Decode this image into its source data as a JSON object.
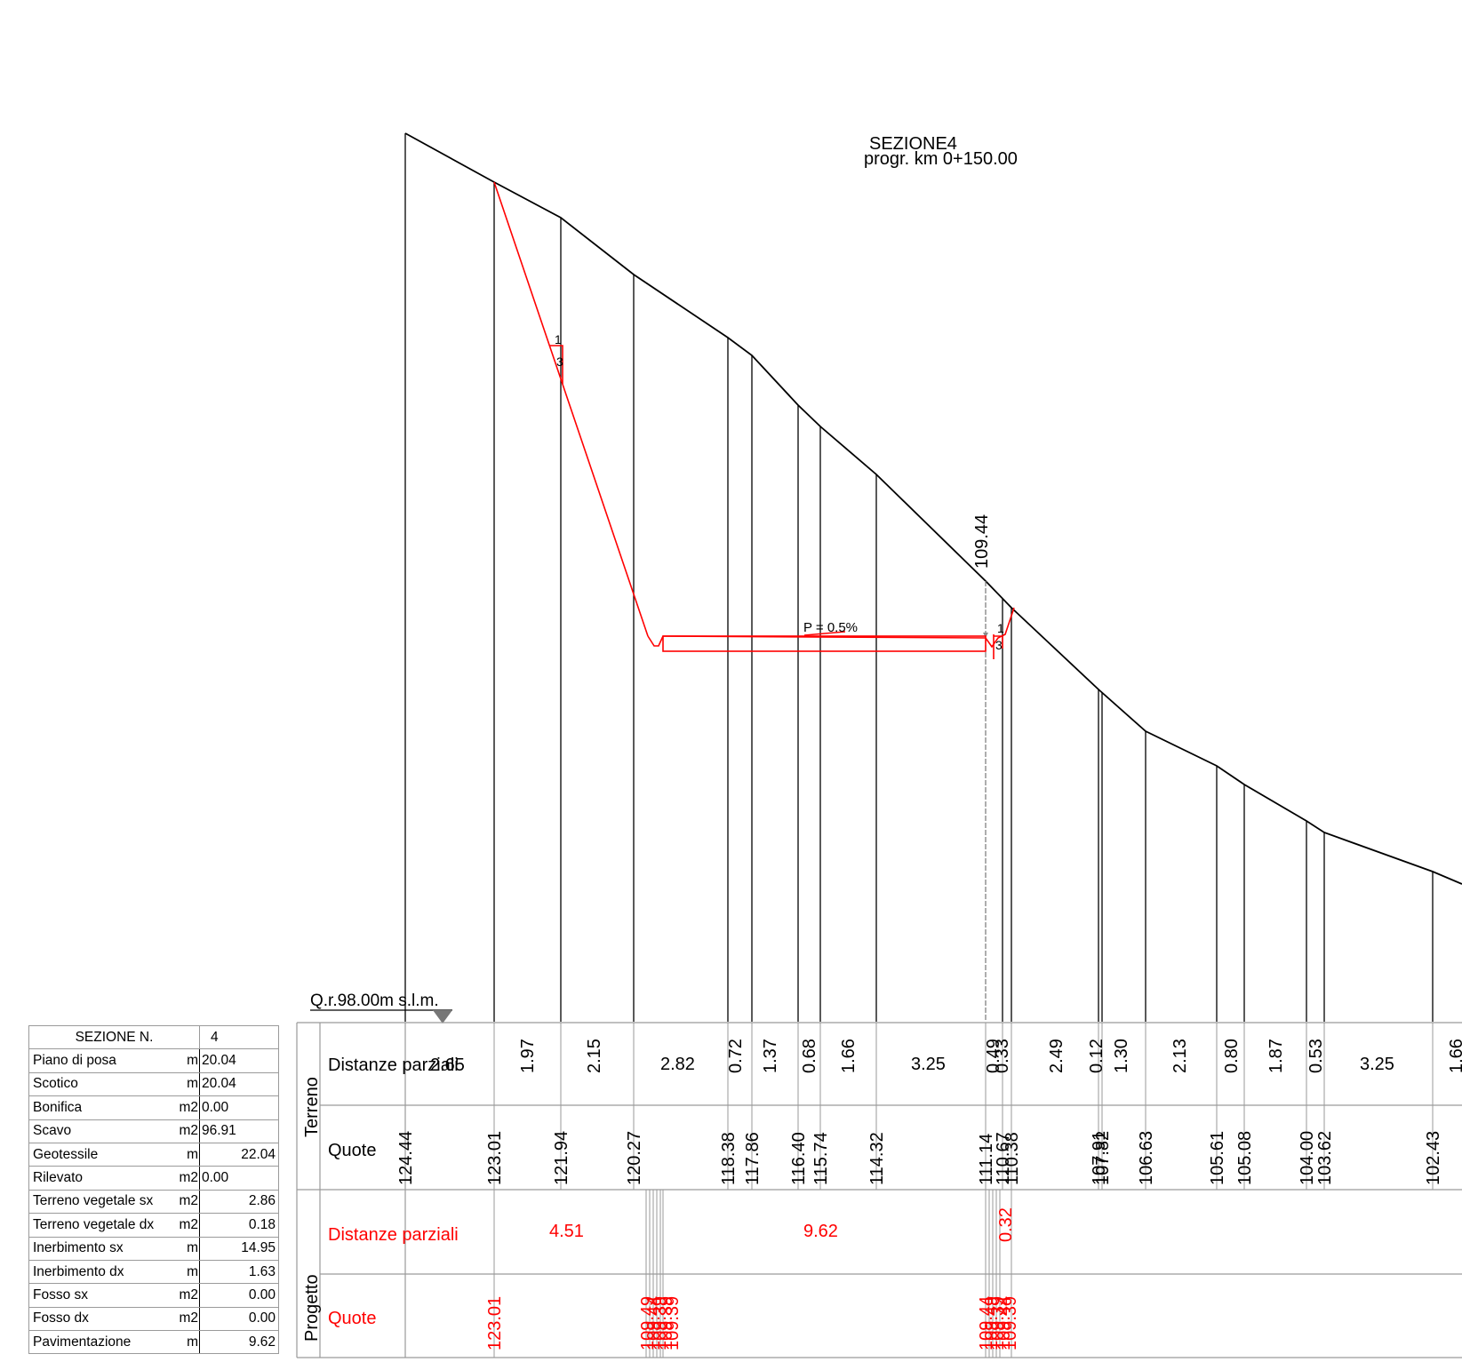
{
  "title": {
    "section": "SEZIONE4",
    "progressive": "progr. km 0+150.00"
  },
  "reference_level": "Q.r.98.00m s.l.m.",
  "drawing": {
    "slope_label": "P = 0.5%",
    "slope_ratio_left": [
      "1",
      "3"
    ],
    "slope_ratio_right": [
      "1",
      "3"
    ],
    "center_elevation": "109.44"
  },
  "band": {
    "group_terreno": "Terreno",
    "group_progetto": "Progetto",
    "row_distanze": "Distanze parziali",
    "row_quote": "Quote",
    "row_prog_distanze": "Distanze parziali",
    "row_prog_quote": "Quote"
  },
  "terreno_distanze": [
    "2.65",
    "1.97",
    "2.15",
    "2.82",
    "0.72",
    "1.37",
    "0.68",
    "1.66",
    "3.25",
    "0.49",
    "0.33",
    "2.49",
    "0.12",
    "1.30",
    "2.13",
    "0.80",
    "1.87",
    "0.53",
    "3.25",
    "1.66"
  ],
  "terreno_quote": [
    "124.44",
    "123.01",
    "121.94",
    "120.27",
    "118.38",
    "117.86",
    "116.40",
    "115.74",
    "114.32",
    "111.14",
    "110.67",
    "110.38",
    "107.91",
    "107.82",
    "106.63",
    "105.61",
    "105.08",
    "104.00",
    "103.62",
    "102.43"
  ],
  "progetto_distanze": [
    "4.51",
    "9.62",
    "0.32"
  ],
  "progetto_quote": [
    "123.01",
    "109.49",
    "109.44",
    "109.39"
  ],
  "summary": {
    "header_label": "SEZIONE N.",
    "header_value": "4",
    "rows": [
      {
        "label": "Piano di posa",
        "unit": "m",
        "value": "20.04"
      },
      {
        "label": "Scotico",
        "unit": "m",
        "value": "20.04"
      },
      {
        "label": "Bonifica",
        "unit": "m2",
        "value": "0.00"
      },
      {
        "label": "Scavo",
        "unit": "m2",
        "value": "96.91"
      },
      {
        "label": "Geotessile",
        "unit": "m",
        "value": "22.04"
      },
      {
        "label": "Rilevato",
        "unit": "m2",
        "value": "0.00"
      },
      {
        "label": "Terreno vegetale sx",
        "unit": "m2",
        "value": "2.86"
      },
      {
        "label": "Terreno vegetale dx",
        "unit": "m2",
        "value": "0.18"
      },
      {
        "label": "Inerbimento sx",
        "unit": "m",
        "value": "14.95"
      },
      {
        "label": "Inerbimento dx",
        "unit": "m",
        "value": "1.63"
      },
      {
        "label": "Fosso sx",
        "unit": "m2",
        "value": "0.00"
      },
      {
        "label": "Fosso dx",
        "unit": "m2",
        "value": "0.00"
      },
      {
        "label": "Pavimentazione",
        "unit": "m",
        "value": "9.62"
      }
    ]
  },
  "colors": {
    "terrain": "#000000",
    "project": "#ff0000",
    "grid": "#9a9a9a"
  }
}
